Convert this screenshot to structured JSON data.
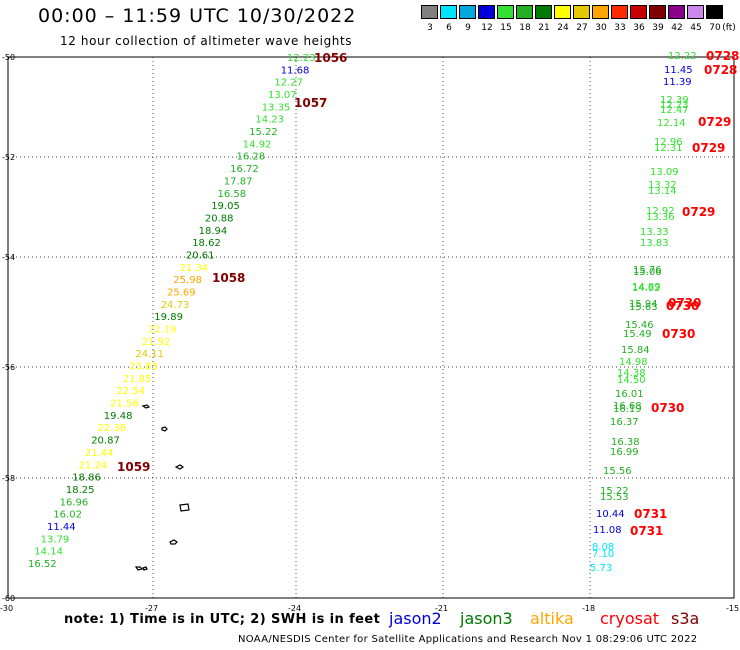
{
  "header": {
    "title": "00:00 – 11:59 UTC 10/30/2022",
    "subtitle": "12 hour collection of altimeter wave heights"
  },
  "colorbar": {
    "unit": "(ft)",
    "bins": [
      {
        "label": "3",
        "color": "#808080"
      },
      {
        "label": "6",
        "color": "#00e5ff"
      },
      {
        "label": "9",
        "color": "#00a8e0"
      },
      {
        "label": "12",
        "color": "#0000d8"
      },
      {
        "label": "15",
        "color": "#33e033"
      },
      {
        "label": "18",
        "color": "#22b022"
      },
      {
        "label": "21",
        "color": "#007a00"
      },
      {
        "label": "24",
        "color": "#ffff00"
      },
      {
        "label": "27",
        "color": "#e6c800"
      },
      {
        "label": "30",
        "color": "#ffa500"
      },
      {
        "label": "33",
        "color": "#ff2a00"
      },
      {
        "label": "36",
        "color": "#c80000"
      },
      {
        "label": "39",
        "color": "#800000"
      },
      {
        "label": "42",
        "color": "#8b008b"
      },
      {
        "label": "45",
        "color": "#cc88ee"
      },
      {
        "label": "70",
        "color": "#000000"
      }
    ]
  },
  "map": {
    "lat_ticks": [
      "-50",
      "-52",
      "-54",
      "-56",
      "-58",
      "-60"
    ],
    "lon_ticks": [
      "-30",
      "-27",
      "-24",
      "-21",
      "-18",
      "-15"
    ],
    "left_track": [
      {
        "v": "12.23",
        "color": "#33e033"
      },
      {
        "v": "11.68",
        "color": "#0000d8"
      },
      {
        "v": "12.27",
        "color": "#33e033"
      },
      {
        "v": "13.07",
        "color": "#33e033"
      },
      {
        "v": "13.35",
        "color": "#33e033"
      },
      {
        "v": "14.23",
        "color": "#33e033"
      },
      {
        "v": "15.22",
        "color": "#22b022"
      },
      {
        "v": "14.92",
        "color": "#33e033"
      },
      {
        "v": "16.28",
        "color": "#22b022"
      },
      {
        "v": "16.72",
        "color": "#22b022"
      },
      {
        "v": "17.87",
        "color": "#22b022"
      },
      {
        "v": "16.58",
        "color": "#22b022"
      },
      {
        "v": "19.05",
        "color": "#007a00"
      },
      {
        "v": "20.88",
        "color": "#007a00"
      },
      {
        "v": "18.94",
        "color": "#007a00"
      },
      {
        "v": "18.62",
        "color": "#007a00"
      },
      {
        "v": "20.61",
        "color": "#007a00"
      },
      {
        "v": "21.34",
        "color": "#ffff00"
      },
      {
        "v": "25.98",
        "color": "#ffa500"
      },
      {
        "v": "25.69",
        "color": "#ffa500"
      },
      {
        "v": "24.73",
        "color": "#e6c800"
      },
      {
        "v": "19.89",
        "color": "#007a00"
      },
      {
        "v": "22.19",
        "color": "#ffff00"
      },
      {
        "v": "21.92",
        "color": "#ffff00"
      },
      {
        "v": "24.11",
        "color": "#e6c800"
      },
      {
        "v": "23.83",
        "color": "#ffff00"
      },
      {
        "v": "21.85",
        "color": "#ffff00"
      },
      {
        "v": "22.54",
        "color": "#ffff00"
      },
      {
        "v": "21.56",
        "color": "#ffff00"
      },
      {
        "v": "19.48",
        "color": "#007a00"
      },
      {
        "v": "22.38",
        "color": "#ffff00"
      },
      {
        "v": "20.87",
        "color": "#007a00"
      },
      {
        "v": "21.44",
        "color": "#ffff00"
      },
      {
        "v": "21.24",
        "color": "#ffff00"
      },
      {
        "v": "18.86",
        "color": "#007a00"
      },
      {
        "v": "18.25",
        "color": "#007a00"
      },
      {
        "v": "16.96",
        "color": "#22b022"
      },
      {
        "v": "16.02",
        "color": "#22b022"
      },
      {
        "v": "11.44",
        "color": "#0000d8"
      },
      {
        "v": "13.79",
        "color": "#33e033"
      },
      {
        "v": "14.14",
        "color": "#33e033"
      },
      {
        "v": "16.52",
        "color": "#22b022"
      }
    ],
    "left_times": [
      {
        "t": "1056",
        "color": "#800000"
      },
      {
        "t": "1057",
        "color": "#800000"
      },
      {
        "t": "1058",
        "color": "#800000"
      },
      {
        "t": "1059",
        "color": "#800000"
      }
    ],
    "right_track": [
      {
        "v": "12.22",
        "color": "#33e033"
      },
      {
        "v": "11.45",
        "color": "#0000d8"
      },
      {
        "v": "11.39",
        "color": "#0000d8"
      },
      {
        "v": "12.39",
        "color": "#33e033"
      },
      {
        "v": "12.23",
        "color": "#33e033"
      },
      {
        "v": "12.47",
        "color": "#33e033"
      },
      {
        "v": "12.14",
        "color": "#33e033"
      },
      {
        "v": "12.96",
        "color": "#33e033"
      },
      {
        "v": "12.31",
        "color": "#33e033"
      },
      {
        "v": "13.09",
        "color": "#33e033"
      },
      {
        "v": "13.32",
        "color": "#33e033"
      },
      {
        "v": "13.14",
        "color": "#33e033"
      },
      {
        "v": "12.92",
        "color": "#33e033"
      },
      {
        "v": "13.36",
        "color": "#33e033"
      },
      {
        "v": "13.33",
        "color": "#33e033"
      },
      {
        "v": "13.83",
        "color": "#33e033"
      },
      {
        "v": "15.76",
        "color": "#22b022"
      },
      {
        "v": "15.06",
        "color": "#22b022"
      },
      {
        "v": "14.89",
        "color": "#33e033"
      },
      {
        "v": "14.92",
        "color": "#33e033"
      },
      {
        "v": "15.94",
        "color": "#22b022"
      },
      {
        "v": "15.63",
        "color": "#22b022"
      },
      {
        "v": "15.49",
        "color": "#22b022"
      },
      {
        "v": "15.46",
        "color": "#22b022"
      },
      {
        "v": "15.84",
        "color": "#22b022"
      },
      {
        "v": "14.98",
        "color": "#33e033"
      },
      {
        "v": "14.38",
        "color": "#33e033"
      },
      {
        "v": "14.50",
        "color": "#33e033"
      },
      {
        "v": "16.01",
        "color": "#22b022"
      },
      {
        "v": "16.68",
        "color": "#22b022"
      },
      {
        "v": "16.19",
        "color": "#22b022"
      },
      {
        "v": "16.37",
        "color": "#22b022"
      },
      {
        "v": "16.38",
        "color": "#22b022"
      },
      {
        "v": "16.99",
        "color": "#22b022"
      },
      {
        "v": "15.56",
        "color": "#22b022"
      },
      {
        "v": "15.22",
        "color": "#22b022"
      },
      {
        "v": "15.53",
        "color": "#22b022"
      },
      {
        "v": "10.44",
        "color": "#0000d8"
      },
      {
        "v": "11.08",
        "color": "#0000d8"
      },
      {
        "v": "8.08",
        "color": "#00e5ff"
      },
      {
        "v": "7.10",
        "color": "#00e5ff"
      },
      {
        "v": "5.73",
        "color": "#00e5ff"
      }
    ],
    "right_times": [
      {
        "t": "0728",
        "color": "#ff0000"
      },
      {
        "t": "0728",
        "color": "#ff0000"
      },
      {
        "t": "0729",
        "color": "#ff0000"
      },
      {
        "t": "0729",
        "color": "#ff0000"
      },
      {
        "t": "0729",
        "color": "#ff0000"
      },
      {
        "t": "0730",
        "color": "#ff0000"
      },
      {
        "t": "0730",
        "color": "#ff0000"
      },
      {
        "t": "0730",
        "color": "#ff0000"
      },
      {
        "t": "0730",
        "color": "#ff0000"
      },
      {
        "t": "0731",
        "color": "#ff0000"
      },
      {
        "t": "0731",
        "color": "#ff0000"
      }
    ]
  },
  "footer": {
    "note": "note: 1) Time is in UTC; 2) SWH is in feet",
    "missions": [
      {
        "name": "jason2",
        "color": "#0000d8"
      },
      {
        "name": "jason3",
        "color": "#007a00"
      },
      {
        "name": "altika",
        "color": "#ffa500"
      },
      {
        "name": "cryosat",
        "color": "#ff0000"
      },
      {
        "name": "s3a",
        "color": "#800000"
      }
    ],
    "credit": "NOAA/NESDIS Center for Satellite Applications and Research     Nov  1 08:29:06 UTC 2022"
  }
}
